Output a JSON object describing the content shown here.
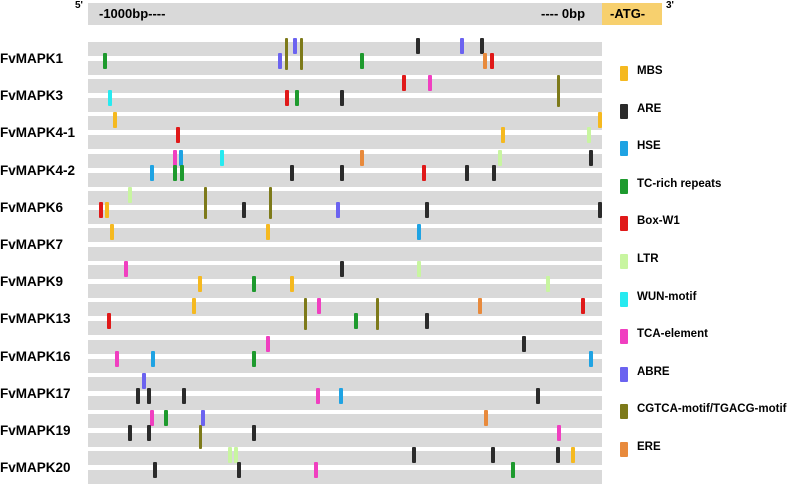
{
  "header": {
    "five_prime": "5'",
    "three_prime": "3'",
    "left_label": "-1000bp----",
    "right_label": "---- 0bp",
    "atg_label": "-ATG-",
    "atg_color": "#f7d06e",
    "bar_color": "#d9d9d9"
  },
  "legend": [
    {
      "key": "MBS",
      "label": "MBS",
      "color": "#f5b920"
    },
    {
      "key": "ARE",
      "label": "ARE",
      "color": "#2b2b2b"
    },
    {
      "key": "HSE",
      "label": "HSE",
      "color": "#1fa3e3"
    },
    {
      "key": "TC",
      "label": "TC-rich repeats",
      "color": "#1e9a2e"
    },
    {
      "key": "BOX",
      "label": "Box-W1",
      "color": "#e01919"
    },
    {
      "key": "LTR",
      "label": "LTR",
      "color": "#c8f5a0"
    },
    {
      "key": "WUN",
      "label": "WUN-motif",
      "color": "#27eaf0"
    },
    {
      "key": "TCA",
      "label": "TCA-element",
      "color": "#f03fc0"
    },
    {
      "key": "ABRE",
      "label": "ABRE",
      "color": "#6b63f0"
    },
    {
      "key": "CGT",
      "label": "CGTCA-motif/TGACG-motif",
      "color": "#7d7a1a"
    },
    {
      "key": "ERE",
      "label": "ERE",
      "color": "#e88a3c"
    }
  ],
  "chart_data": {
    "type": "diagram",
    "promoter_range_bp": [
      -1000,
      0
    ],
    "genes": [
      {
        "name": "FvMAPK1",
        "motifs": [
          {
            "k": "TC",
            "bp": -967,
            "s": 1
          },
          {
            "k": "ABRE",
            "bp": -627,
            "s": 1
          },
          {
            "k": "CGT",
            "bp": -613,
            "s": 0
          },
          {
            "k": "ABRE",
            "bp": -598,
            "s": 0
          },
          {
            "k": "CGT",
            "bp": -583,
            "s": 0
          },
          {
            "k": "TC",
            "bp": -466,
            "s": 1
          },
          {
            "k": "ARE",
            "bp": -358,
            "s": 0
          },
          {
            "k": "ABRE",
            "bp": -272,
            "s": 0
          },
          {
            "k": "ARE",
            "bp": -233,
            "s": 0
          },
          {
            "k": "ERE",
            "bp": -228,
            "s": 1
          },
          {
            "k": "BOX",
            "bp": -214,
            "s": 1
          }
        ]
      },
      {
        "name": "FvMAPK3",
        "motifs": [
          {
            "k": "WUN",
            "bp": -957,
            "s": 1
          },
          {
            "k": "BOX",
            "bp": -613,
            "s": 1
          },
          {
            "k": "TC",
            "bp": -593,
            "s": 1
          },
          {
            "k": "ARE",
            "bp": -506,
            "s": 1
          },
          {
            "k": "BOX",
            "bp": -385,
            "s": 0
          },
          {
            "k": "TCA",
            "bp": -335,
            "s": 0
          },
          {
            "k": "CGT",
            "bp": -84,
            "s": 0
          }
        ]
      },
      {
        "name": "FvMAPK4-1",
        "motifs": [
          {
            "k": "MBS",
            "bp": -947,
            "s": 0
          },
          {
            "k": "BOX",
            "bp": -825,
            "s": 1
          },
          {
            "k": "MBS",
            "bp": -193,
            "s": 1
          },
          {
            "k": "LTR",
            "bp": -25,
            "s": 1
          },
          {
            "k": "MBS",
            "bp": -4,
            "s": 0
          }
        ]
      },
      {
        "name": "FvMAPK4-2",
        "motifs": [
          {
            "k": "HSE",
            "bp": -875,
            "s": 1
          },
          {
            "k": "TCA",
            "bp": -830,
            "s": 0
          },
          {
            "k": "TC",
            "bp": -830,
            "s": 1
          },
          {
            "k": "HSE",
            "bp": -820,
            "s": 0
          },
          {
            "k": "TC",
            "bp": -818,
            "s": 1
          },
          {
            "k": "WUN",
            "bp": -740,
            "s": 0
          },
          {
            "k": "ARE",
            "bp": -603,
            "s": 1
          },
          {
            "k": "ARE",
            "bp": -506,
            "s": 1
          },
          {
            "k": "ERE",
            "bp": -467,
            "s": 0
          },
          {
            "k": "BOX",
            "bp": -346,
            "s": 1
          },
          {
            "k": "ARE",
            "bp": -263,
            "s": 1
          },
          {
            "k": "LTR",
            "bp": -199,
            "s": 0
          },
          {
            "k": "ARE",
            "bp": -210,
            "s": 1
          },
          {
            "k": "ARE",
            "bp": -22,
            "s": 0
          }
        ]
      },
      {
        "name": "FvMAPK6",
        "motifs": [
          {
            "k": "BOX",
            "bp": -975,
            "s": 1
          },
          {
            "k": "MBS",
            "bp": -964,
            "s": 1
          },
          {
            "k": "LTR",
            "bp": -919,
            "s": 0
          },
          {
            "k": "CGT",
            "bp": -770,
            "s": 0
          },
          {
            "k": "ARE",
            "bp": -696,
            "s": 1
          },
          {
            "k": "CGT",
            "bp": -643,
            "s": 0
          },
          {
            "k": "ABRE",
            "bp": -514,
            "s": 1
          },
          {
            "k": "ARE",
            "bp": -340,
            "s": 1
          },
          {
            "k": "ARE",
            "bp": -4,
            "s": 1
          }
        ]
      },
      {
        "name": "FvMAPK7",
        "motifs": [
          {
            "k": "MBS",
            "bp": -954,
            "s": 0
          },
          {
            "k": "MBS",
            "bp": -650,
            "s": 0
          },
          {
            "k": "HSE",
            "bp": -356,
            "s": 0
          }
        ]
      },
      {
        "name": "FvMAPK9",
        "motifs": [
          {
            "k": "TCA",
            "bp": -926,
            "s": 0
          },
          {
            "k": "MBS",
            "bp": -782,
            "s": 1
          },
          {
            "k": "ARE",
            "bp": -506,
            "s": 0
          },
          {
            "k": "TC",
            "bp": -677,
            "s": 1
          },
          {
            "k": "MBS",
            "bp": -603,
            "s": 1
          },
          {
            "k": "LTR",
            "bp": -356,
            "s": 0
          },
          {
            "k": "LTR",
            "bp": -106,
            "s": 1
          }
        ]
      },
      {
        "name": "FvMAPK13",
        "motifs": [
          {
            "k": "BOX",
            "bp": -959,
            "s": 1
          },
          {
            "k": "MBS",
            "bp": -793,
            "s": 0
          },
          {
            "k": "CGT",
            "bp": -576,
            "s": 0
          },
          {
            "k": "TCA",
            "bp": -550,
            "s": 0
          },
          {
            "k": "TC",
            "bp": -479,
            "s": 1
          },
          {
            "k": "CGT",
            "bp": -436,
            "s": 0
          },
          {
            "k": "ARE",
            "bp": -340,
            "s": 1
          },
          {
            "k": "ERE",
            "bp": -237,
            "s": 0
          },
          {
            "k": "BOX",
            "bp": -37,
            "s": 0
          }
        ]
      },
      {
        "name": "FvMAPK16",
        "motifs": [
          {
            "k": "TCA",
            "bp": -944,
            "s": 1
          },
          {
            "k": "HSE",
            "bp": -873,
            "s": 1
          },
          {
            "k": "TC",
            "bp": -677,
            "s": 1
          },
          {
            "k": "TCA",
            "bp": -650,
            "s": 0
          },
          {
            "k": "ARE",
            "bp": -152,
            "s": 0
          },
          {
            "k": "HSE",
            "bp": -22,
            "s": 1
          }
        ]
      },
      {
        "name": "FvMAPK17",
        "motifs": [
          {
            "k": "ABRE",
            "bp": -891,
            "s": 0
          },
          {
            "k": "ARE",
            "bp": -902,
            "s": 1
          },
          {
            "k": "ARE",
            "bp": -882,
            "s": 1
          },
          {
            "k": "ARE",
            "bp": -813,
            "s": 1
          },
          {
            "k": "TCA",
            "bp": -553,
            "s": 1
          },
          {
            "k": "HSE",
            "bp": -508,
            "s": 1
          },
          {
            "k": "ARE",
            "bp": -124,
            "s": 1
          }
        ]
      },
      {
        "name": "FvMAPK19",
        "motifs": [
          {
            "k": "ARE",
            "bp": -918,
            "s": 1
          },
          {
            "k": "TCA",
            "bp": -875,
            "s": 0
          },
          {
            "k": "ARE",
            "bp": -881,
            "s": 1
          },
          {
            "k": "TC",
            "bp": -848,
            "s": 0
          },
          {
            "k": "ABRE",
            "bp": -776,
            "s": 0
          },
          {
            "k": "CGT",
            "bp": -780,
            "s": 1
          },
          {
            "k": "ARE",
            "bp": -677,
            "s": 1
          },
          {
            "k": "ERE",
            "bp": -226,
            "s": 0
          },
          {
            "k": "TCA",
            "bp": -84,
            "s": 1
          }
        ]
      },
      {
        "name": "FvMAPK20",
        "motifs": [
          {
            "k": "ARE",
            "bp": -870,
            "s": 1
          },
          {
            "k": "LTR",
            "bp": -724,
            "s": 0
          },
          {
            "k": "LTR",
            "bp": -712,
            "s": 0
          },
          {
            "k": "ARE",
            "bp": -706,
            "s": 1
          },
          {
            "k": "TCA",
            "bp": -556,
            "s": 1
          },
          {
            "k": "ARE",
            "bp": -366,
            "s": 0
          },
          {
            "k": "ARE",
            "bp": -212,
            "s": 0
          },
          {
            "k": "TC",
            "bp": -173,
            "s": 1
          },
          {
            "k": "ARE",
            "bp": -86,
            "s": 0
          },
          {
            "k": "MBS",
            "bp": -56,
            "s": 0
          }
        ]
      }
    ]
  }
}
